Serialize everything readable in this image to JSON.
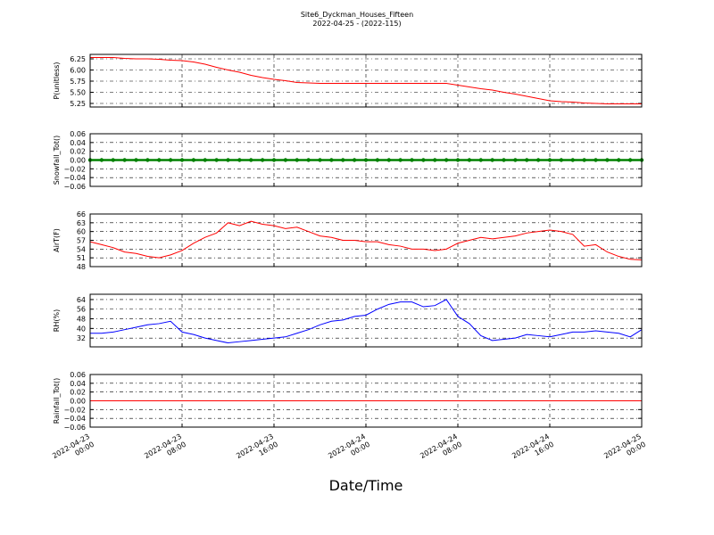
{
  "chart_data": {
    "title": "Site6_Dyckman_Houses_Fifteen",
    "subtitle": "2022-04-25 - (2022-115)",
    "xlabel": "Date/Time",
    "xlim": [
      "2022-04-23 00:00",
      "2022-04-25 00:00"
    ],
    "xticks": [
      "2022-04-23 00:00",
      "2022-04-23 08:00",
      "2022-04-23 16:00",
      "2022-04-24 00:00",
      "2022-04-24 08:00",
      "2022-04-24 16:00",
      "2022-04-25 00:00"
    ],
    "grid": true,
    "x": [
      "2022-04-23 00:00",
      "2022-04-23 01:00",
      "2022-04-23 02:00",
      "2022-04-23 03:00",
      "2022-04-23 04:00",
      "2022-04-23 05:00",
      "2022-04-23 06:00",
      "2022-04-23 07:00",
      "2022-04-23 08:00",
      "2022-04-23 09:00",
      "2022-04-23 10:00",
      "2022-04-23 11:00",
      "2022-04-23 12:00",
      "2022-04-23 13:00",
      "2022-04-23 14:00",
      "2022-04-23 15:00",
      "2022-04-23 16:00",
      "2022-04-23 17:00",
      "2022-04-23 18:00",
      "2022-04-23 19:00",
      "2022-04-23 20:00",
      "2022-04-23 21:00",
      "2022-04-23 22:00",
      "2022-04-23 23:00",
      "2022-04-24 00:00",
      "2022-04-24 01:00",
      "2022-04-24 02:00",
      "2022-04-24 03:00",
      "2022-04-24 04:00",
      "2022-04-24 05:00",
      "2022-04-24 06:00",
      "2022-04-24 07:00",
      "2022-04-24 08:00",
      "2022-04-24 09:00",
      "2022-04-24 10:00",
      "2022-04-24 11:00",
      "2022-04-24 12:00",
      "2022-04-24 13:00",
      "2022-04-24 14:00",
      "2022-04-24 15:00",
      "2022-04-24 16:00",
      "2022-04-24 17:00",
      "2022-04-24 18:00",
      "2022-04-24 19:00",
      "2022-04-24 20:00",
      "2022-04-24 21:00",
      "2022-04-24 22:00",
      "2022-04-24 23:00",
      "2022-04-25 00:00"
    ],
    "panels": [
      {
        "type": "line",
        "ylabel": "P(unitless)",
        "ylim": [
          5.17,
          6.35
        ],
        "yticks": [
          {
            "value": 5.25,
            "label": "5.25"
          },
          {
            "value": 5.5,
            "label": "5.50"
          },
          {
            "value": 5.75,
            "label": "5.75"
          },
          {
            "value": 6,
            "label": "6.00"
          },
          {
            "value": 6.25,
            "label": "6.25"
          }
        ],
        "series": [
          {
            "color": "#ff0000",
            "values": [
              6.28,
              6.28,
              6.28,
              6.26,
              6.25,
              6.25,
              6.24,
              6.22,
              6.21,
              6.18,
              6.13,
              6.06,
              6.0,
              5.95,
              5.88,
              5.83,
              5.79,
              5.76,
              5.72,
              5.71,
              5.7,
              5.7,
              5.7,
              5.7,
              5.7,
              5.7,
              5.7,
              5.7,
              5.7,
              5.7,
              5.7,
              5.7,
              5.66,
              5.62,
              5.58,
              5.55,
              5.5,
              5.46,
              5.41,
              5.36,
              5.31,
              5.29,
              5.28,
              5.26,
              5.25,
              5.24,
              5.24,
              5.24,
              5.24
            ]
          }
        ]
      },
      {
        "type": "line",
        "ylabel": "Snowfall_Tot()",
        "ylim": [
          -0.06,
          0.06
        ],
        "yticks": [
          {
            "value": -0.06,
            "label": "−0.06"
          },
          {
            "value": -0.04,
            "label": "−0.04"
          },
          {
            "value": -0.02,
            "label": "−0.02"
          },
          {
            "value": 0,
            "label": "0.00"
          },
          {
            "value": 0.02,
            "label": "0.02"
          },
          {
            "value": 0.04,
            "label": "0.04"
          },
          {
            "value": 0.06,
            "label": "0.06"
          }
        ],
        "series": [
          {
            "color": "#008000",
            "marker": true,
            "values": [
              0,
              0,
              0,
              0,
              0,
              0,
              0,
              0,
              0,
              0,
              0,
              0,
              0,
              0,
              0,
              0,
              0,
              0,
              0,
              0,
              0,
              0,
              0,
              0,
              0,
              0,
              0,
              0,
              0,
              0,
              0,
              0,
              0,
              0,
              0,
              0,
              0,
              0,
              0,
              0,
              0,
              0,
              0,
              0,
              0,
              0,
              0,
              0,
              0
            ]
          }
        ]
      },
      {
        "type": "line",
        "ylabel": "AirT(F)",
        "ylim": [
          48,
          66
        ],
        "yticks": [
          48,
          51,
          54,
          57,
          60,
          63,
          66
        ],
        "series": [
          {
            "color": "#ff0000",
            "values": [
              56.5,
              55.5,
              54.5,
              53,
              52.5,
              51.5,
              51,
              52,
              53.5,
              56,
              58,
              59.5,
              63,
              62,
              63.5,
              62.5,
              62,
              61,
              61.5,
              60,
              58.5,
              58,
              57,
              57,
              56.5,
              56.5,
              55.5,
              55,
              54,
              54,
              53.5,
              54,
              56,
              57,
              58,
              57.5,
              58,
              58.5,
              59.5,
              60,
              60.5,
              60,
              59,
              55,
              55.5,
              53,
              51.5,
              50.5,
              50.3
            ]
          }
        ]
      },
      {
        "type": "line",
        "ylabel": "RH(%)",
        "ylim": [
          24.7,
          68.4
        ],
        "yticks": [
          32,
          40,
          48,
          56,
          64
        ],
        "series": [
          {
            "color": "#0000ff",
            "values": [
              36,
              36,
              37,
              39,
              41,
              43,
              44,
              46,
              37,
              35,
              32,
              30,
              28,
              29,
              30,
              31,
              32,
              33,
              36,
              39,
              43,
              46,
              47,
              50,
              51,
              56,
              60,
              62,
              62,
              58,
              59,
              64,
              50,
              44,
              34,
              30,
              31,
              32,
              35,
              34,
              33,
              35,
              37,
              37,
              38,
              37,
              36,
              33,
              39
            ]
          }
        ]
      },
      {
        "type": "line",
        "ylabel": "Rainfall_Tot()",
        "ylim": [
          -0.06,
          0.06
        ],
        "yticks": [
          {
            "value": -0.06,
            "label": "−0.06"
          },
          {
            "value": -0.04,
            "label": "−0.04"
          },
          {
            "value": -0.02,
            "label": "−0.02"
          },
          {
            "value": 0,
            "label": "0.00"
          },
          {
            "value": 0.02,
            "label": "0.02"
          },
          {
            "value": 0.04,
            "label": "0.04"
          },
          {
            "value": 0.06,
            "label": "0.06"
          }
        ],
        "series": [
          {
            "color": "#ff0000",
            "values": [
              0,
              0,
              0,
              0,
              0,
              0,
              0,
              0,
              0,
              0,
              0,
              0,
              0,
              0,
              0,
              0,
              0,
              0,
              0,
              0,
              0,
              0,
              0,
              0,
              0,
              0,
              0,
              0,
              0,
              0,
              0,
              0,
              0,
              0,
              0,
              0,
              0,
              0,
              0,
              0,
              0,
              0,
              0,
              0,
              0,
              0,
              0,
              0,
              0
            ]
          }
        ]
      }
    ]
  }
}
